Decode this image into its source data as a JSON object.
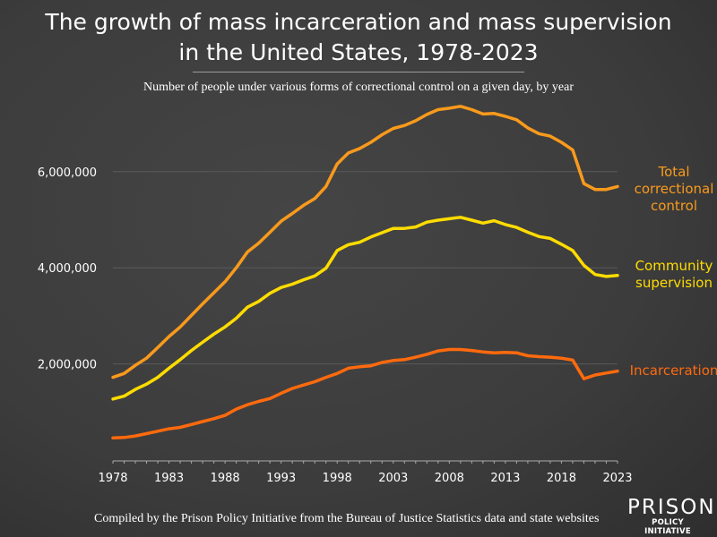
{
  "title_line1": "The growth of mass incarceration and mass supervision",
  "title_line2": "in the United States, 1978-2023",
  "subtitle": "Number of people under various forms of correctional control on a given day, by year",
  "footer": "Compiled by the Prison Policy Initiative from the Bureau of Justice Statistics data and state websites",
  "logo": {
    "line1": "PRISON",
    "line2": "POLICY INITIATIVE"
  },
  "chart_data": {
    "type": "line",
    "title": "The growth of mass incarceration and mass supervision in the United States, 1978-2023",
    "subtitle": "Number of people under various forms of correctional control on a given day, by year",
    "x": [
      1978,
      1979,
      1980,
      1981,
      1982,
      1983,
      1984,
      1985,
      1986,
      1987,
      1988,
      1989,
      1990,
      1991,
      1992,
      1993,
      1994,
      1995,
      1996,
      1997,
      1998,
      1999,
      2000,
      2001,
      2002,
      2003,
      2004,
      2005,
      2006,
      2007,
      2008,
      2009,
      2010,
      2011,
      2012,
      2013,
      2014,
      2015,
      2016,
      2017,
      2018,
      2019,
      2020,
      2021,
      2022,
      2023
    ],
    "xlim": [
      1978,
      2023
    ],
    "ylim": [
      0,
      7500000
    ],
    "x_ticks": [
      "1978",
      "1983",
      "1988",
      "1993",
      "1998",
      "2003",
      "2008",
      "2013",
      "2018",
      "2023"
    ],
    "y_ticks": [
      {
        "value": 2000000,
        "label": "2,000,000"
      },
      {
        "value": 4000000,
        "label": "4,000,000"
      },
      {
        "value": 6000000,
        "label": "6,000,000"
      }
    ],
    "grid": "horizontal",
    "legend": "direct labels at right end of lines",
    "series": [
      {
        "name": "Total correctional control",
        "label_lines": [
          "Total",
          "correctional",
          "control"
        ],
        "color": "#f99a1c",
        "values": [
          1720000,
          1800000,
          1970000,
          2120000,
          2340000,
          2570000,
          2770000,
          3010000,
          3250000,
          3480000,
          3710000,
          4000000,
          4330000,
          4510000,
          4740000,
          4970000,
          5130000,
          5300000,
          5440000,
          5690000,
          6160000,
          6390000,
          6480000,
          6610000,
          6770000,
          6900000,
          6960000,
          7060000,
          7190000,
          7290000,
          7320000,
          7360000,
          7290000,
          7200000,
          7210000,
          7150000,
          7080000,
          6910000,
          6790000,
          6740000,
          6610000,
          6450000,
          5750000,
          5630000,
          5630000,
          5690000
        ]
      },
      {
        "name": "Community supervision",
        "label_lines": [
          "Community",
          "supervision"
        ],
        "color": "#ffdc00",
        "values": [
          1270000,
          1330000,
          1470000,
          1580000,
          1720000,
          1910000,
          2090000,
          2280000,
          2450000,
          2620000,
          2770000,
          2950000,
          3180000,
          3300000,
          3470000,
          3590000,
          3660000,
          3750000,
          3830000,
          3990000,
          4360000,
          4480000,
          4530000,
          4640000,
          4730000,
          4820000,
          4820000,
          4850000,
          4950000,
          4990000,
          5020000,
          5050000,
          4990000,
          4930000,
          4980000,
          4900000,
          4840000,
          4740000,
          4650000,
          4610000,
          4490000,
          4360000,
          4050000,
          3860000,
          3820000,
          3840000
        ]
      },
      {
        "name": "Incarceration",
        "label_lines": [
          "Incarceration"
        ],
        "color": "#ff6a0d",
        "values": [
          460000,
          470000,
          500000,
          550000,
          600000,
          650000,
          680000,
          740000,
          800000,
          860000,
          930000,
          1060000,
          1150000,
          1220000,
          1280000,
          1390000,
          1490000,
          1560000,
          1630000,
          1720000,
          1800000,
          1910000,
          1940000,
          1960000,
          2030000,
          2070000,
          2090000,
          2140000,
          2200000,
          2270000,
          2300000,
          2300000,
          2280000,
          2250000,
          2230000,
          2240000,
          2230000,
          2170000,
          2150000,
          2140000,
          2120000,
          2080000,
          1690000,
          1770000,
          1810000,
          1850000
        ]
      }
    ]
  }
}
